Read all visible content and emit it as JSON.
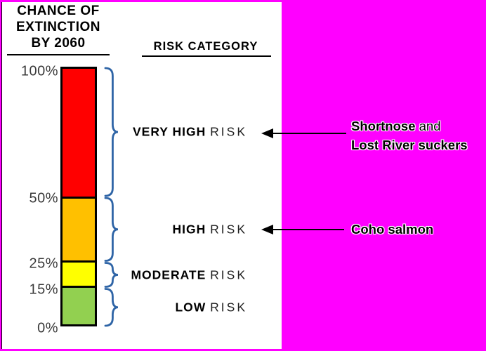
{
  "left_panel": {
    "title_lines": [
      "CHANCE OF",
      "EXTINCTION",
      "BY 2060"
    ],
    "risk_header": "RISK CATEGORY"
  },
  "chart_data": {
    "type": "bar",
    "title": "CHANCE OF EXTINCTION BY 2060",
    "ylabel": "Chance of extinction by 2060 (%)",
    "ylim": [
      0,
      100
    ],
    "axis_ticks": [
      {
        "label": "100%",
        "pct": 100
      },
      {
        "label": "50%",
        "pct": 50
      },
      {
        "label": "25%",
        "pct": 25
      },
      {
        "label": "15%",
        "pct": 15
      },
      {
        "label": "0%",
        "pct": 0
      }
    ],
    "segments": [
      {
        "id": "very-high",
        "label_bold": "VERY HIGH",
        "label_light": "RISK",
        "from_pct": 50,
        "to_pct": 100,
        "color": "#ff0000"
      },
      {
        "id": "high",
        "label_bold": "HIGH",
        "label_light": "RISK",
        "from_pct": 25,
        "to_pct": 50,
        "color": "#ffc000"
      },
      {
        "id": "moderate",
        "label_bold": "MODERATE",
        "label_light": "RISK",
        "from_pct": 15,
        "to_pct": 25,
        "color": "#ffff00"
      },
      {
        "id": "low",
        "label_bold": "LOW",
        "label_light": "RISK",
        "from_pct": 0,
        "to_pct": 15,
        "color": "#92d050"
      }
    ]
  },
  "annotations": {
    "shortnose": {
      "line1_bold": "Shortnose",
      "line1_regular": " and",
      "line2_bold": "Lost River suckers",
      "points_to": "VERY HIGH RISK"
    },
    "coho": {
      "label": "Coho salmon",
      "points_to": "HIGH RISK"
    }
  },
  "colors": {
    "background": "#ff00ff",
    "panel": "#ffffff",
    "brace": "#2e64a6",
    "arrow": "#000000",
    "bar_border": "#000000"
  }
}
